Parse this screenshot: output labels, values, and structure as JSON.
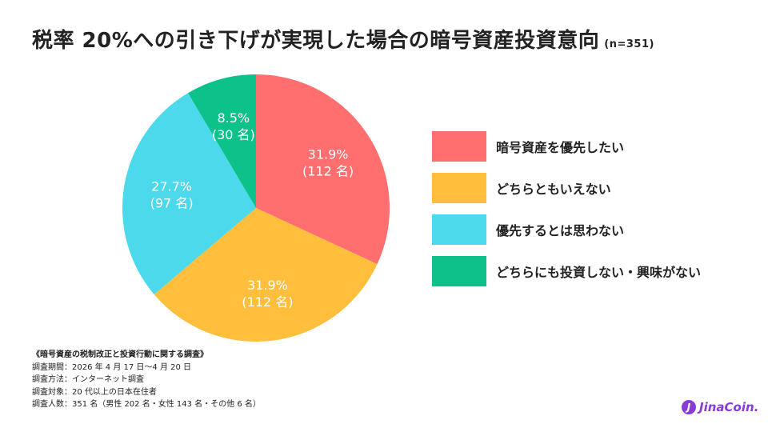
{
  "title": "税率 20%への引き下げが実現した場合の暗号資産投資意向",
  "sample": "(n=351)",
  "chart_data": {
    "type": "pie",
    "start": "12 o'clock",
    "direction": "clockwise",
    "slices": [
      {
        "label": "暗号資産を優先したい",
        "percent": 31.9,
        "percent_text": "31.9%",
        "count_text": "(112 名)",
        "color": "#ff6f6f"
      },
      {
        "label": "どちらともいえない",
        "percent": 31.9,
        "percent_text": "31.9%",
        "count_text": "(112 名)",
        "color": "#ffbf3c"
      },
      {
        "label": "優先するとは思わない",
        "percent": 27.7,
        "percent_text": "27.7%",
        "count_text": "(97 名)",
        "color": "#4dd9ec"
      },
      {
        "label": "どちらにも投資しない・興味がない",
        "percent": 8.5,
        "percent_text": "8.5%",
        "count_text": "(30 名)",
        "color": "#0dc28a"
      }
    ]
  },
  "legend": {
    "items": [
      {
        "label": "暗号資産を優先したい",
        "color": "#ff6f6f"
      },
      {
        "label": "どちらともいえない",
        "color": "#ffbf3c"
      },
      {
        "label": "優先するとは思わない",
        "color": "#4dd9ec"
      },
      {
        "label": "どちらにも投資しない・興味がない",
        "color": "#0dc28a"
      }
    ]
  },
  "footnote": {
    "title": "《暗号資産の税制改正と投資行動に関する調査》",
    "lines": [
      "調査期間：2026 年 4 月 17 日〜4 月 20 日",
      "調査方法：インターネット調査",
      "調査対象：20 代以上の日本在住者",
      "調査人数：351 名（男性 202 名・女性 143 名・その他 6 名）"
    ]
  },
  "logo": {
    "mark": "J",
    "text": "JinaCoin."
  }
}
